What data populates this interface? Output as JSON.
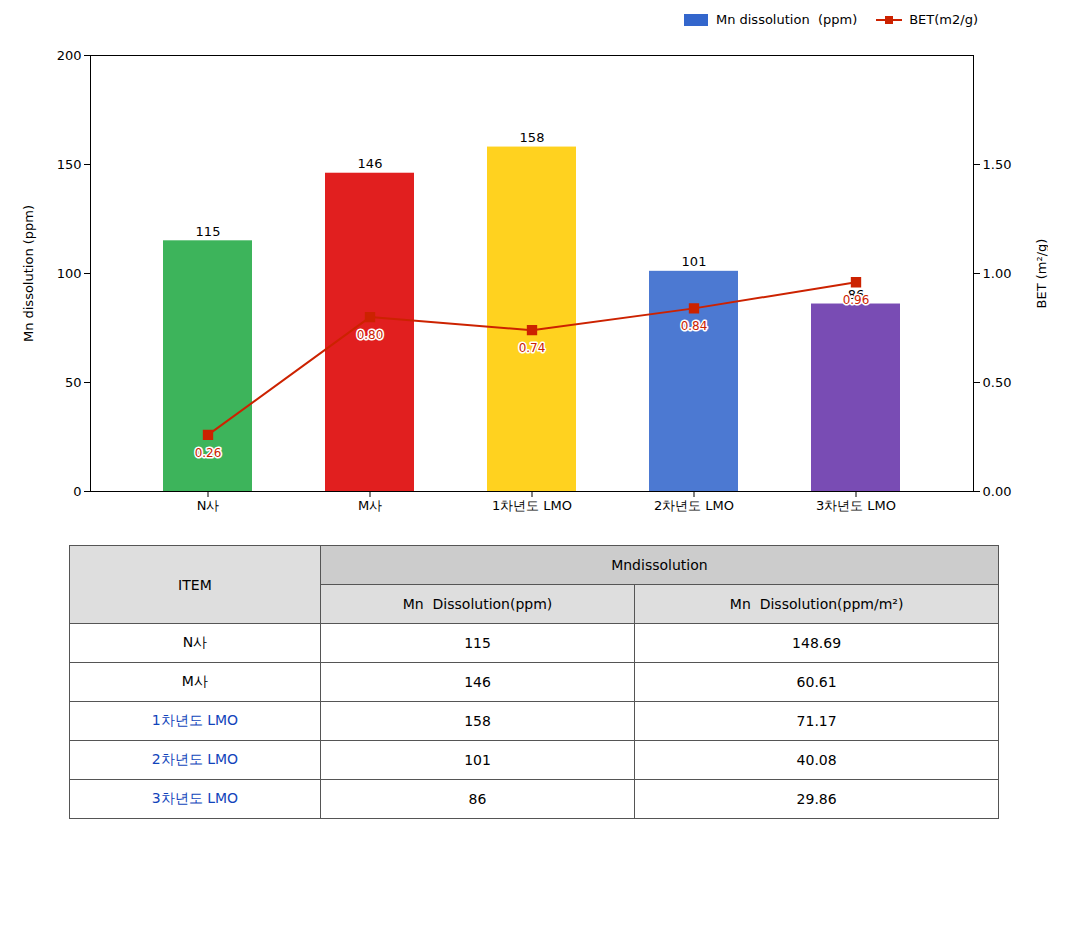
{
  "chart_data": [
    {
      "type": "bar",
      "categories": [
        "N사",
        "M사",
        "1차년도 LMO",
        "2차년도 LMO",
        "3차년도 LMO"
      ],
      "series": [
        {
          "name": "Mn dissolution  (ppm)",
          "type": "bar",
          "color": "#3366cc",
          "colors": [
            "#22aa44",
            "#dd0000",
            "#ffcc00",
            "#3366cc",
            "#6633aa"
          ],
          "values": [
            115,
            146,
            158,
            101,
            86
          ],
          "data_labels": true
        },
        {
          "name": "BET(m2/g)",
          "type": "line",
          "axis": "y2",
          "color": "#cc2200",
          "marker": "square",
          "values": [
            0.26,
            0.8,
            0.74,
            0.84,
            0.96
          ],
          "value_labels": [
            "0.26",
            "0.80",
            "0.74",
            "0.84",
            "0.96"
          ],
          "data_labels": true
        }
      ],
      "ylabel": "Mn dissolution (ppm)",
      "y2label": "BET (m²/g)",
      "ylim": [
        0,
        200
      ],
      "yticks": [
        0,
        50,
        100,
        150,
        200
      ],
      "y2lim": [
        0.0,
        2.0
      ],
      "y2ticks": [
        {
          "value": 0.0,
          "label": "0.00"
        },
        {
          "value": 0.5,
          "label": "0.50"
        },
        {
          "value": 1.0,
          "label": "1.00"
        },
        {
          "value": 1.5,
          "label": "1.50"
        }
      ],
      "legend": "upper right",
      "grid": false
    },
    {
      "type": "table",
      "column_group": "Mndissolution",
      "columns": [
        "ITEM",
        "Mn  Dissolution(ppm)",
        "Mn  Dissolution(ppm/m²)"
      ],
      "rows": [
        [
          "N사",
          "115",
          "148.69"
        ],
        [
          "M사",
          "146",
          "60.61"
        ],
        [
          "1차년도 LMO",
          "158",
          "71.17"
        ],
        [
          "2차년도 LMO",
          "101",
          "40.08"
        ],
        [
          "3차년도 LMO",
          "86",
          "29.86"
        ]
      ],
      "colors": [
        "black",
        "black",
        "#1144bb",
        "#1144bb",
        "#1144bb"
      ]
    }
  ]
}
